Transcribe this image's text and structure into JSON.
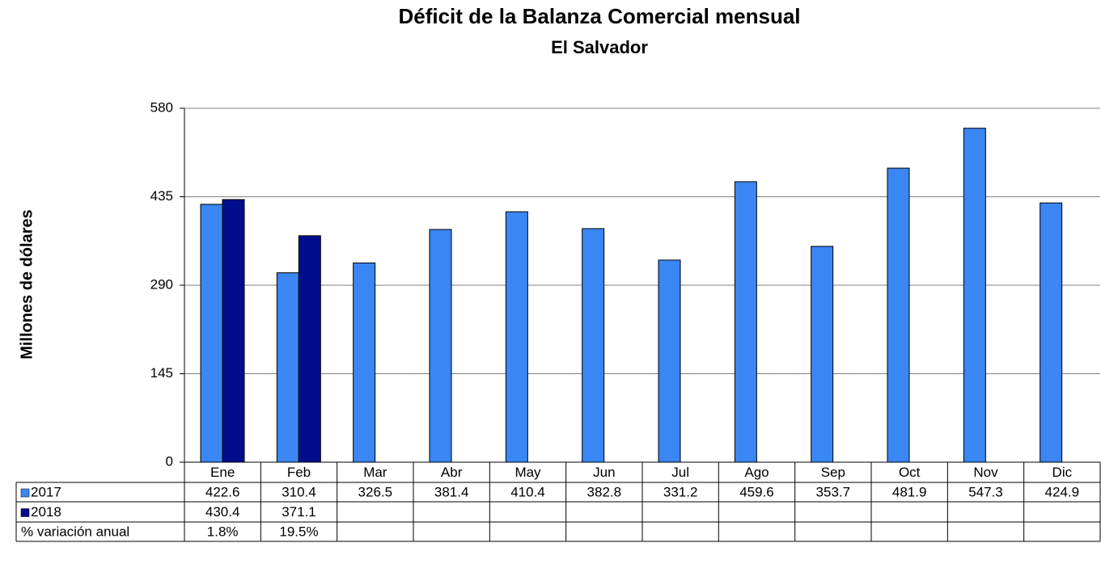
{
  "chart_data": {
    "type": "bar",
    "title": "Déficit de la Balanza Comercial mensual",
    "subtitle": "El Salvador",
    "y_label": "Millones de dólares",
    "categories": [
      "Ene",
      "Feb",
      "Mar",
      "Abr",
      "May",
      "Jun",
      "Jul",
      "Ago",
      "Sep",
      "Oct",
      "Nov",
      "Dic"
    ],
    "series": [
      {
        "name": "2017",
        "color": "#3a86f2",
        "values": [
          422.6,
          310.4,
          326.5,
          381.4,
          410.4,
          382.8,
          331.2,
          459.6,
          353.7,
          481.9,
          547.3,
          424.9
        ]
      },
      {
        "name": "2018",
        "color": "#000e8c",
        "values": [
          430.4,
          371.1,
          null,
          null,
          null,
          null,
          null,
          null,
          null,
          null,
          null,
          null
        ]
      }
    ],
    "variation": {
      "name": "% variación anual",
      "values": [
        1.8,
        19.5,
        null,
        null,
        null,
        null,
        null,
        null,
        null,
        null,
        null,
        null
      ],
      "value_labels": [
        "1.8%",
        "19.5%",
        null,
        null,
        null,
        null,
        null,
        null,
        null,
        null,
        null,
        null
      ]
    },
    "ylim": [
      0,
      580
    ],
    "yticks": [
      0,
      145,
      290,
      435,
      580
    ],
    "grid": true
  }
}
